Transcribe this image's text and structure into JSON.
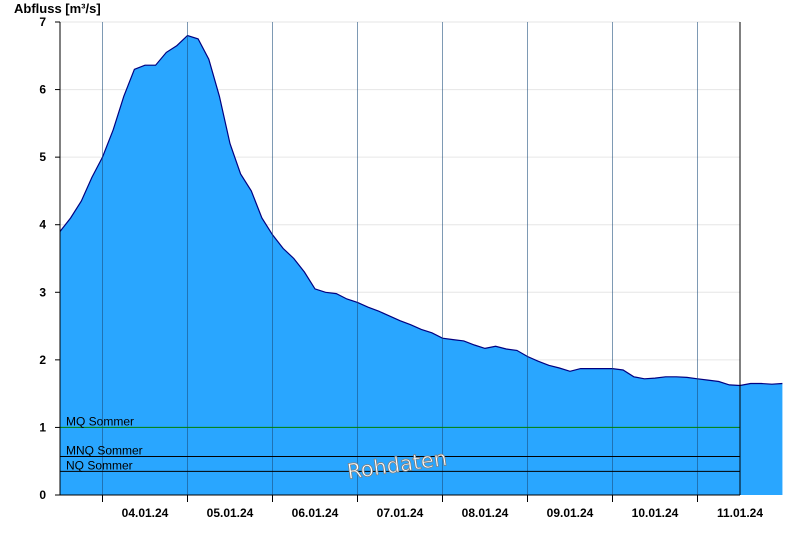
{
  "chart_data": {
    "type": "area",
    "title": "",
    "ylabel": "Abfluss [m³/s]",
    "xlabel": "",
    "ylim": [
      0,
      7
    ],
    "yticks": [
      0,
      1,
      2,
      3,
      4,
      5,
      6,
      7
    ],
    "xlim_days": [
      3.5,
      11.5
    ],
    "xtick_labels": [
      "04.01.24",
      "05.01.24",
      "06.01.24",
      "07.01.24",
      "08.01.24",
      "09.01.24",
      "10.01.24",
      "11.01.24"
    ],
    "grid": true,
    "fill_color": "#29a6ff",
    "line_color": "#000080",
    "series": [
      {
        "x": [
          "2024-01-03 12:00",
          "2024-01-03 15:00",
          "2024-01-03 18:00",
          "2024-01-03 21:00",
          "2024-01-04 00:00",
          "2024-01-04 03:00",
          "2024-01-04 06:00",
          "2024-01-04 09:00",
          "2024-01-04 12:00",
          "2024-01-04 15:00",
          "2024-01-04 18:00",
          "2024-01-04 21:00",
          "2024-01-05 00:00",
          "2024-01-05 03:00",
          "2024-01-05 06:00",
          "2024-01-05 09:00",
          "2024-01-05 12:00",
          "2024-01-05 15:00",
          "2024-01-05 18:00",
          "2024-01-05 21:00",
          "2024-01-06 00:00",
          "2024-01-06 03:00",
          "2024-01-06 06:00",
          "2024-01-06 09:00",
          "2024-01-06 12:00",
          "2024-01-06 15:00",
          "2024-01-06 18:00",
          "2024-01-06 21:00",
          "2024-01-07 00:00",
          "2024-01-07 03:00",
          "2024-01-07 06:00",
          "2024-01-07 09:00",
          "2024-01-07 12:00",
          "2024-01-07 15:00",
          "2024-01-07 18:00",
          "2024-01-07 21:00",
          "2024-01-08 00:00",
          "2024-01-08 03:00",
          "2024-01-08 06:00",
          "2024-01-08 09:00",
          "2024-01-08 12:00",
          "2024-01-08 15:00",
          "2024-01-08 18:00",
          "2024-01-08 21:00",
          "2024-01-09 00:00",
          "2024-01-09 03:00",
          "2024-01-09 06:00",
          "2024-01-09 09:00",
          "2024-01-09 12:00",
          "2024-01-09 15:00",
          "2024-01-09 18:00",
          "2024-01-09 21:00",
          "2024-01-10 00:00",
          "2024-01-10 03:00",
          "2024-01-10 06:00",
          "2024-01-10 09:00",
          "2024-01-10 12:00",
          "2024-01-10 15:00",
          "2024-01-10 18:00",
          "2024-01-10 21:00",
          "2024-01-11 00:00",
          "2024-01-11 03:00",
          "2024-01-11 06:00",
          "2024-01-11 09:00",
          "2024-01-11 12:00",
          "2024-01-11 15:00",
          "2024-01-11 18:00",
          "2024-01-11 21:00",
          "2024-01-11 23:59"
        ],
        "values": [
          3.9,
          4.1,
          4.35,
          4.7,
          5.0,
          5.4,
          5.9,
          6.3,
          6.36,
          6.36,
          6.55,
          6.65,
          6.8,
          6.75,
          6.45,
          5.9,
          5.2,
          4.75,
          4.5,
          4.1,
          3.85,
          3.65,
          3.5,
          3.3,
          3.05,
          3.0,
          2.98,
          2.9,
          2.85,
          2.78,
          2.72,
          2.65,
          2.58,
          2.52,
          2.45,
          2.4,
          2.32,
          2.3,
          2.28,
          2.22,
          2.17,
          2.2,
          2.16,
          2.14,
          2.05,
          1.98,
          1.92,
          1.88,
          1.83,
          1.87,
          1.87,
          1.87,
          1.87,
          1.85,
          1.75,
          1.72,
          1.73,
          1.75,
          1.75,
          1.74,
          1.72,
          1.7,
          1.68,
          1.63,
          1.62,
          1.65,
          1.65,
          1.64,
          1.65
        ]
      }
    ],
    "reference_lines": [
      {
        "label": "MQ Sommer",
        "value": 1.0,
        "color": "#008000"
      },
      {
        "label": "MNQ Sommer",
        "value": 0.57,
        "color": "#000000"
      },
      {
        "label": "NQ Sommer",
        "value": 0.35,
        "color": "#000000"
      }
    ],
    "watermark": "Rohdaten"
  }
}
